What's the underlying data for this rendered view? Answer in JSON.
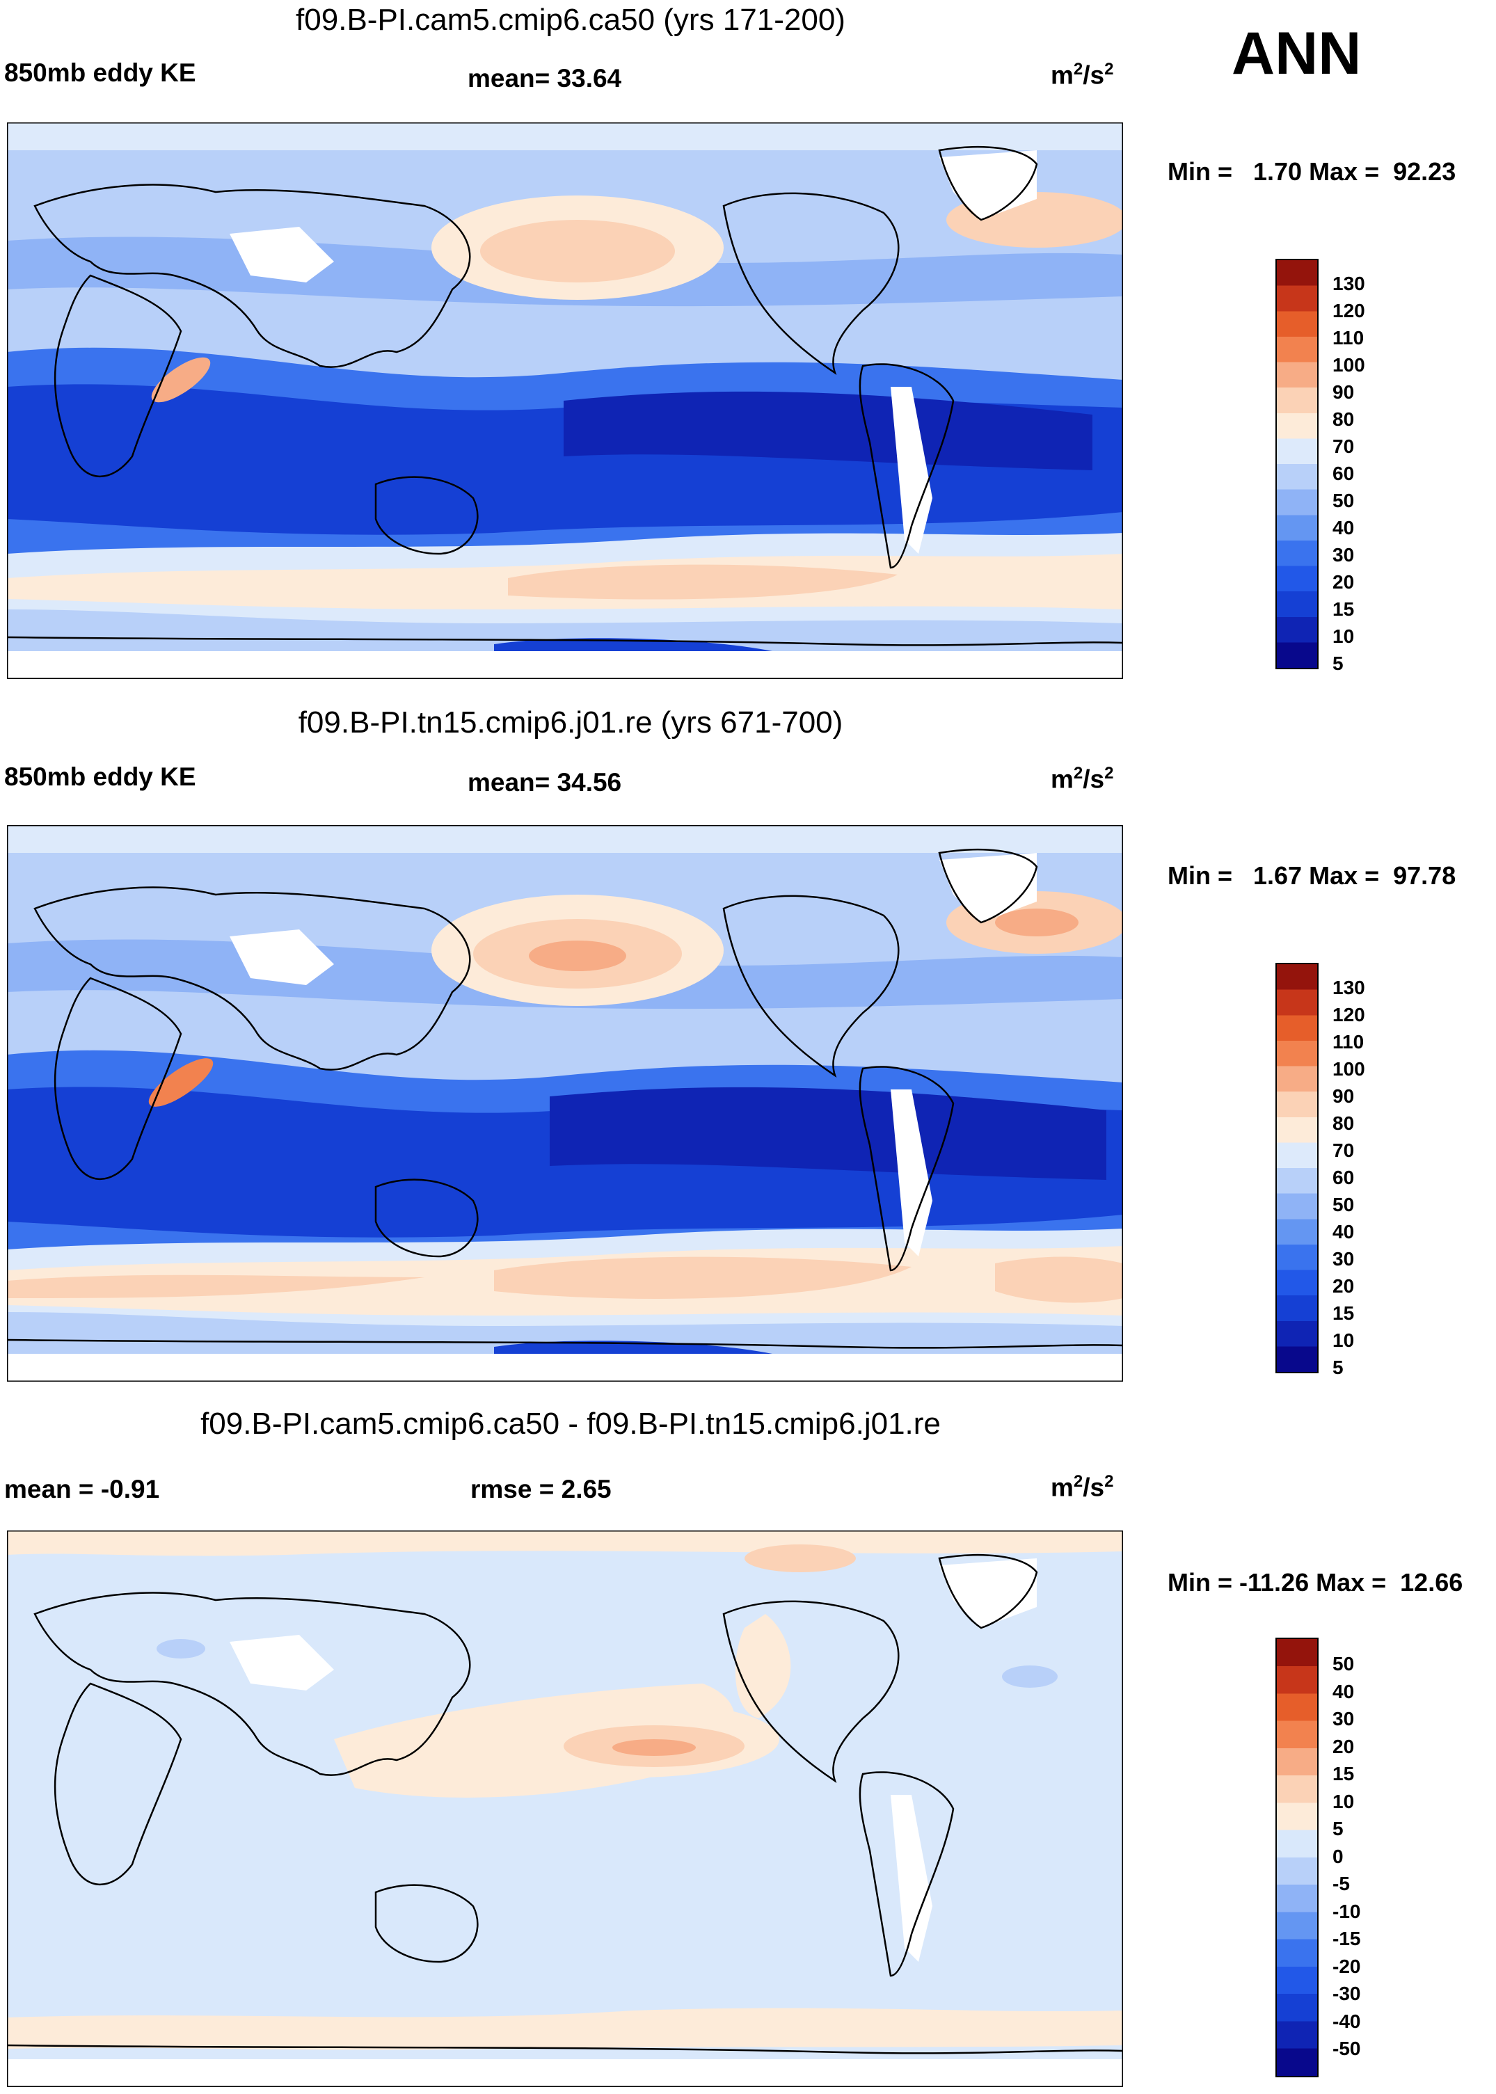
{
  "season": "ANN",
  "palette_abs": [
    "#08088c",
    "#0f24b4",
    "#1540d4",
    "#2258e8",
    "#3a73ee",
    "#6496f2",
    "#8fb3f6",
    "#b8d0f9",
    "#ddeafb",
    "#fdebd9",
    "#fbd2b6",
    "#f7ac86",
    "#f2824f",
    "#e65e2a",
    "#c7361a",
    "#94140c"
  ],
  "palette_diff": [
    "#08088c",
    "#0f24b4",
    "#1540d4",
    "#2258e8",
    "#3a73ee",
    "#6496f2",
    "#8fb3f6",
    "#b8d0f9",
    "#d9e8fb",
    "#fdebd9",
    "#fbd2b6",
    "#f7ac86",
    "#f2824f",
    "#e65e2a",
    "#c7361a",
    "#94140c"
  ],
  "panels": [
    {
      "title": "f09.B-PI.cam5.cmip6.ca50 (yrs 171-200)",
      "left_label": "850mb eddy KE",
      "center_label": "mean=  33.64",
      "units": "m",
      "units_sup1": "2",
      "units_mid": "/s",
      "units_sup2": "2",
      "minmax": "Min =   1.70 Max =  92.23",
      "ticks": [
        "130",
        "120",
        "110",
        "100",
        "90",
        "80",
        "70",
        "60",
        "50",
        "40",
        "30",
        "20",
        "15",
        "10",
        "5"
      ]
    },
    {
      "title": "f09.B-PI.tn15.cmip6.j01.re (yrs 671-700)",
      "left_label": "850mb eddy KE",
      "center_label": "mean=  34.56",
      "units": "m",
      "units_sup1": "2",
      "units_mid": "/s",
      "units_sup2": "2",
      "minmax": "Min =   1.67 Max =  97.78",
      "ticks": [
        "130",
        "120",
        "110",
        "100",
        "90",
        "80",
        "70",
        "60",
        "50",
        "40",
        "30",
        "20",
        "15",
        "10",
        "5"
      ]
    },
    {
      "title": "f09.B-PI.cam5.cmip6.ca50 - f09.B-PI.tn15.cmip6.j01.re",
      "left_label": "mean =  -0.91",
      "center_label": "rmse =   2.65",
      "units": "m",
      "units_sup1": "2",
      "units_mid": "/s",
      "units_sup2": "2",
      "minmax": "Min = -11.26 Max =  12.66",
      "ticks": [
        "50",
        "40",
        "30",
        "20",
        "15",
        "10",
        "5",
        "0",
        "-5",
        "-10",
        "-15",
        "-20",
        "-30",
        "-40",
        "-50"
      ]
    }
  ]
}
